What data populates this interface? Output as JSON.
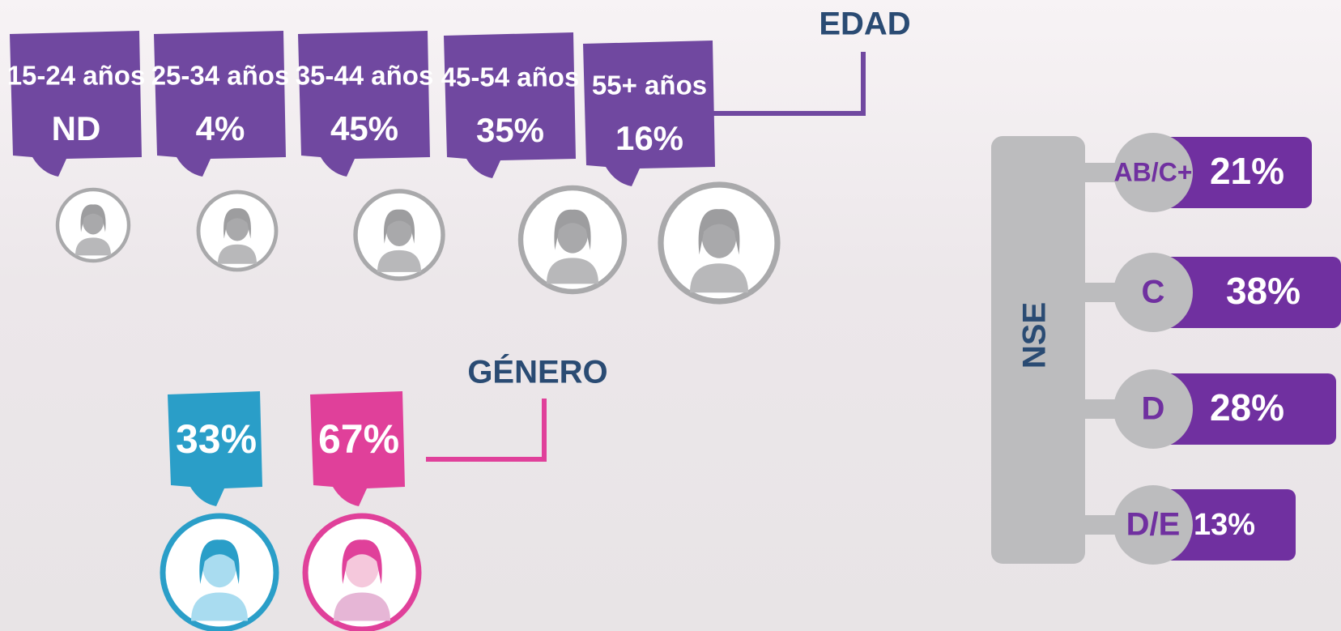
{
  "edad": {
    "title": "EDAD",
    "groups": [
      {
        "label": "15-24 años",
        "value": "ND"
      },
      {
        "label": "25-34 años",
        "value": "4%"
      },
      {
        "label": "35-44 años",
        "value": "45%"
      },
      {
        "label": "45-54 años",
        "value": "35%"
      },
      {
        "label": "55+ años",
        "value": "16%"
      }
    ]
  },
  "genero": {
    "title": "GÉNERO",
    "groups": [
      {
        "value": "33%"
      },
      {
        "value": "67%"
      }
    ]
  },
  "nse": {
    "title": "NSE",
    "levels": [
      {
        "label": "AB/C+",
        "value": "21%"
      },
      {
        "label": "C",
        "value": "38%"
      },
      {
        "label": "D",
        "value": "28%"
      },
      {
        "label": "D/E",
        "value": "13%"
      }
    ]
  }
}
